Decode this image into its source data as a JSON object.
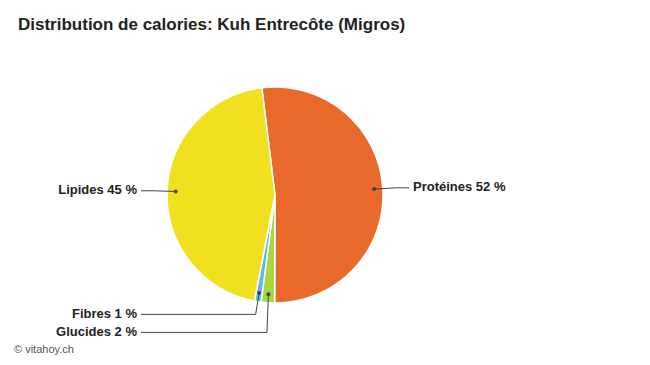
{
  "chart_data": {
    "type": "pie",
    "title": "Distribution de calories: Kuh Entrecôte (Migros)",
    "categories": [
      "Protéines 52 %",
      "Glucides 2 %",
      "Fibres 1 %",
      "Lipides 45 %"
    ],
    "values": [
      52,
      2,
      1,
      45
    ],
    "colors": [
      "#E8692A",
      "#A8D840",
      "#5BB8E8",
      "#F0E020"
    ],
    "annotations": [
      "© vitahoy.ch"
    ]
  }
}
